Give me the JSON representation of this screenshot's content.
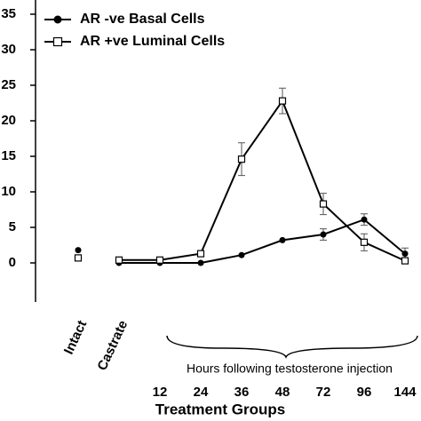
{
  "chart_data": {
    "type": "line",
    "categories": [
      "Intact",
      "Castrate",
      "12",
      "24",
      "36",
      "48",
      "72",
      "96",
      "144"
    ],
    "series": [
      {
        "name": "AR -ve Basal Cells",
        "color": "#000000",
        "marker": "circle",
        "values": [
          1.8,
          0,
          0,
          0,
          1.1,
          3.2,
          4.0,
          6.1,
          1.3
        ],
        "errors": [
          null,
          null,
          null,
          null,
          null,
          null,
          0.8,
          0.8,
          0.8
        ]
      },
      {
        "name": "AR +ve Luminal Cells",
        "color": "#000000",
        "marker": "square",
        "values": [
          0.7,
          0.4,
          0.4,
          1.3,
          14.6,
          22.8,
          8.3,
          2.9,
          0.3
        ],
        "errors": [
          null,
          null,
          null,
          null,
          2.3,
          1.8,
          1.5,
          1.2,
          null
        ]
      }
    ],
    "ylim": [
      -5.5,
      37
    ],
    "yticks": [
      0,
      5,
      10,
      15,
      20,
      25,
      30,
      35
    ],
    "annotation": "Hours following testosterone injection",
    "x_label": "Treatment Groups",
    "legend": "upper left"
  }
}
